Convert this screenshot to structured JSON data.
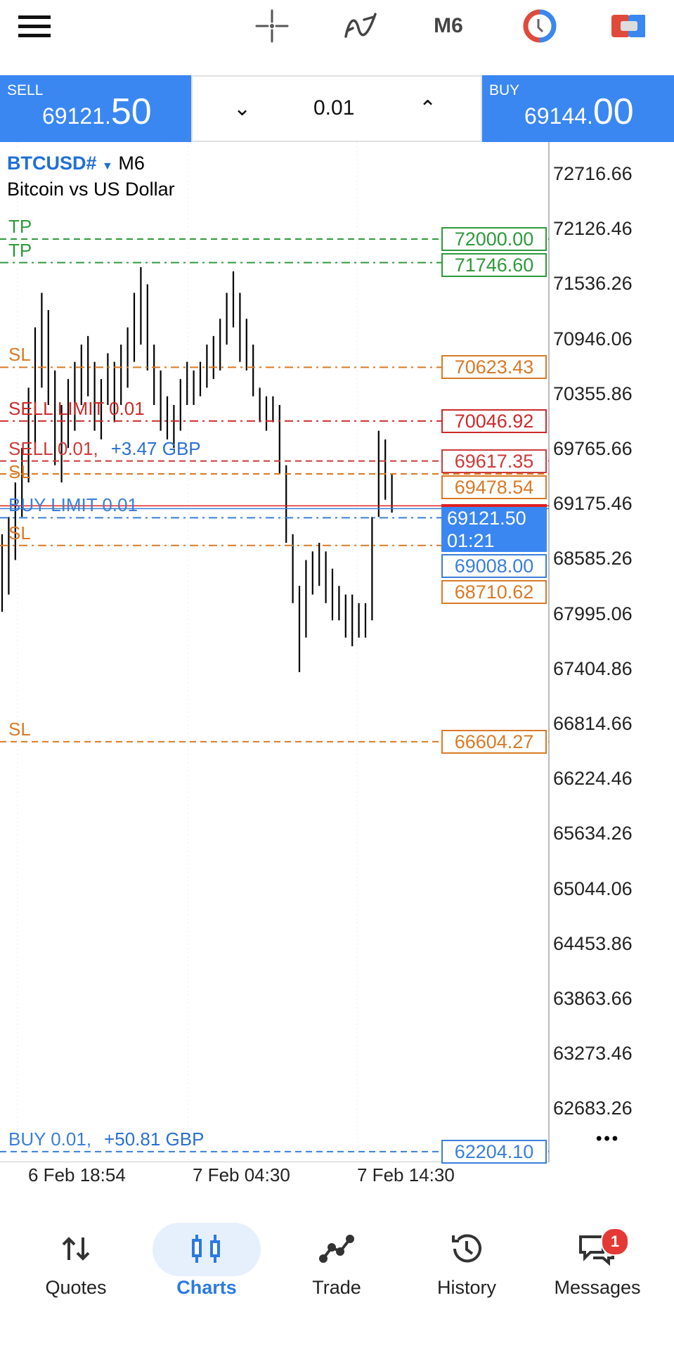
{
  "toolbar": {
    "timeframe": "M6",
    "icons": [
      "menu-icon",
      "crosshair-icon",
      "indicators-icon",
      "clock-icon",
      "one-click-trading-icon"
    ]
  },
  "trade_panel": {
    "sell_label": "SELL",
    "sell_price_main": "69121.",
    "sell_price_big": "50",
    "buy_label": "BUY",
    "buy_price_main": "69144.",
    "buy_price_big": "00",
    "lot": "0.01"
  },
  "chart": {
    "symbol": "BTCUSD#",
    "timeframe": "M6",
    "description": "Bitcoin vs US Dollar",
    "axis_labels": [
      "72716.66",
      "72126.46",
      "71536.26",
      "70946.06",
      "70355.86",
      "69765.66",
      "69175.46",
      "68585.26",
      "67995.06",
      "67404.86",
      "66814.66",
      "66224.46",
      "65634.26",
      "65044.06",
      "64453.86",
      "63863.66",
      "63273.46",
      "62683.26"
    ],
    "time_labels": [
      "6 Feb 18:54",
      "7 Feb 04:30",
      "7 Feb 14:30"
    ],
    "current_price": "69121.50",
    "countdown": "01:21",
    "levels": [
      {
        "label": "TP",
        "price": "72000.00",
        "color": "#2e9a3c",
        "style": "dashed"
      },
      {
        "label": "TP",
        "price": "71746.60",
        "color": "#2e9a3c",
        "style": "dashdot"
      },
      {
        "label": "SL",
        "price": "70623.43",
        "color": "#d97a26",
        "style": "dashdot"
      },
      {
        "label": "SELL LIMIT 0.01",
        "price": "70046.92",
        "color": "#cc2a2a",
        "style": "dashdot"
      },
      {
        "label": "SELL 0.01,",
        "profit": "+3.47 GBP",
        "price": "69617.35",
        "color": "#cc3a3a",
        "style": "dashed"
      },
      {
        "label": "SL",
        "price": "69478.54",
        "color": "#d97a26",
        "style": "dashed"
      },
      {
        "label": "BUY LIMIT 0.01",
        "price": "69008.00",
        "color": "#3a7fd9",
        "style": "dashdot"
      },
      {
        "label": "SL",
        "price": "68710.62",
        "color": "#d97a26",
        "style": "dashdot"
      },
      {
        "label": "SL",
        "price": "66604.27",
        "color": "#d97a26",
        "style": "dashed"
      },
      {
        "label": "BUY 0.01,",
        "profit": "+50.81 GBP",
        "price": "62204.10",
        "color": "#3a7fd9",
        "style": "dashed"
      }
    ],
    "colors": {
      "accent": "#3a87f2",
      "profit": "#2a6fd1"
    }
  },
  "chart_data": {
    "type": "bar",
    "ylim": [
      62204,
      72900
    ],
    "bars_high_low": [
      [
        68832,
        67999
      ],
      [
        69017,
        68184
      ],
      [
        69387,
        68554
      ],
      [
        69757,
        69017
      ],
      [
        70404,
        69387
      ],
      [
        71052,
        69757
      ],
      [
        71422,
        70404
      ],
      [
        71237,
        70219
      ],
      [
        70589,
        69572
      ],
      [
        70219,
        69387
      ],
      [
        70497,
        69757
      ],
      [
        70682,
        69942
      ],
      [
        70867,
        70219
      ],
      [
        70959,
        70312
      ],
      [
        70682,
        69942
      ],
      [
        70497,
        69849
      ],
      [
        70774,
        70219
      ],
      [
        70682,
        70034
      ],
      [
        70867,
        70219
      ],
      [
        71052,
        70404
      ],
      [
        71422,
        70682
      ],
      [
        71699,
        70867
      ],
      [
        71514,
        70589
      ],
      [
        70867,
        70219
      ],
      [
        70589,
        69942
      ],
      [
        70312,
        69849
      ],
      [
        70219,
        69757
      ],
      [
        70497,
        69942
      ],
      [
        70682,
        70219
      ],
      [
        70589,
        70219
      ],
      [
        70682,
        70312
      ],
      [
        70867,
        70404
      ],
      [
        70959,
        70497
      ],
      [
        71144,
        70589
      ],
      [
        71422,
        70867
      ],
      [
        71653,
        71052
      ],
      [
        71422,
        70682
      ],
      [
        71144,
        70589
      ],
      [
        70867,
        70312
      ],
      [
        70404,
        70034
      ],
      [
        70312,
        69942
      ],
      [
        70312,
        70034
      ],
      [
        70219,
        69479
      ],
      [
        69572,
        68739
      ],
      [
        68832,
        68092
      ],
      [
        68277,
        67352
      ],
      [
        68554,
        67722
      ],
      [
        68647,
        68184
      ],
      [
        68739,
        68277
      ],
      [
        68647,
        68092
      ],
      [
        68462,
        67907
      ],
      [
        68277,
        67907
      ],
      [
        68184,
        67722
      ],
      [
        68184,
        67629
      ],
      [
        68092,
        67722
      ],
      [
        68092,
        67722
      ],
      [
        69017,
        67907
      ],
      [
        69942,
        69017
      ],
      [
        69849,
        69202
      ],
      [
        69479,
        69063
      ]
    ]
  },
  "bottom_nav": {
    "items": [
      {
        "label": "Quotes",
        "icon": "quotes-icon"
      },
      {
        "label": "Charts",
        "icon": "charts-icon",
        "active": true
      },
      {
        "label": "Trade",
        "icon": "trade-icon"
      },
      {
        "label": "History",
        "icon": "history-icon"
      },
      {
        "label": "Messages",
        "icon": "messages-icon",
        "badge": "1"
      }
    ]
  }
}
